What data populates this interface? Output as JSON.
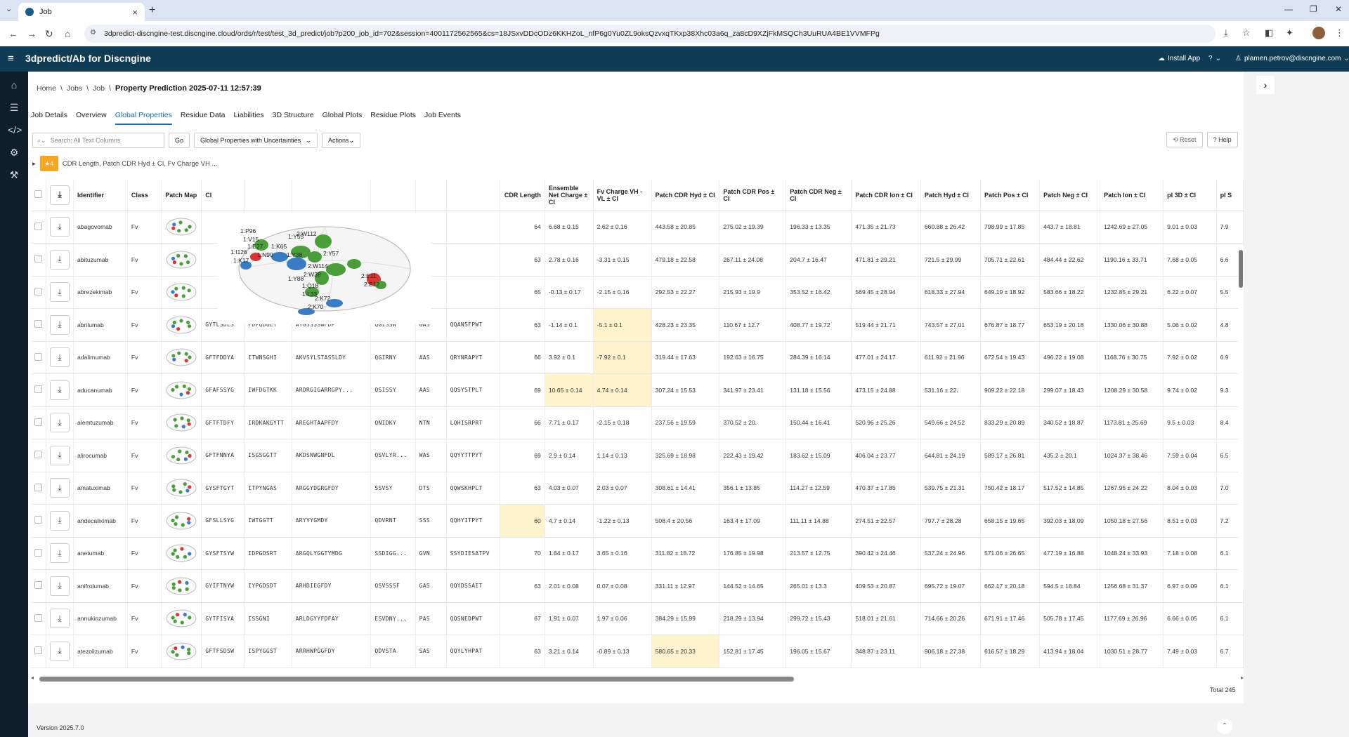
{
  "browser": {
    "tab_title": "Job",
    "url": "3dpredict-discngine-test.discngine.cloud/ords/r/test/test_3d_predict/job?p200_job_id=702&session=4001172562565&cs=18JSxvDDcODz6KKHZoL_nfP6g0Yu0ZL9oksQzvxqTKxp38Xhc03a6q_za8cD9XZjFkMSQCh3UuRUA4BE1VVMFPg"
  },
  "app": {
    "title": "3dpredict/Ab for Discngine",
    "install": "Install App",
    "help": "?",
    "user": "plamen.petrov@discngine.com"
  },
  "breadcrumb": {
    "home": "Home",
    "jobs": "Jobs",
    "job": "Job",
    "current": "Property Prediction 2025-07-11 12:57:39"
  },
  "tabs": [
    "Job Details",
    "Overview",
    "Global Properties",
    "Residue Data",
    "Liabilities",
    "3D Structure",
    "Global Plots",
    "Residue Plots",
    "Job Events"
  ],
  "toolbar": {
    "search_placeholder": "Search: All Text Columns",
    "go": "Go",
    "view_select": "Global Properties with Uncertainties",
    "actions": "Actions",
    "reset": "Reset",
    "help": "Help"
  },
  "filter": {
    "count": "4",
    "text": "CDR Length, Patch CDR Hyd ± CI, Fv Charge VH ..."
  },
  "columns": {
    "identifier": "Identifier",
    "class": "Class",
    "patch_map": "Patch Map",
    "c1": "Cl",
    "cdr_length": "CDR Length",
    "ensemble": "Ensemble Net Charge ± CI",
    "fv_charge": "Fv Charge VH - VL ± CI",
    "pcdr_hyd": "Patch CDR Hyd ± CI",
    "pcdr_pos": "Patch CDR Pos ± CI",
    "pcdr_neg": "Patch CDR Neg ± CI",
    "pcdr_ion": "Patch CDR Ion ± CI",
    "p_hyd": "Patch Hyd ± CI",
    "p_pos": "Patch Pos ± CI",
    "p_neg": "Patch Neg ± CI",
    "p_ion": "Patch Ion ± CI",
    "pi3d": "pI 3D ± CI",
    "pi_s": "pI S"
  },
  "rows": [
    {
      "id": "abagovomab",
      "cls": "Fv",
      "h1": "",
      "h2": "",
      "h3": "",
      "l1": "",
      "l2": "",
      "l3": "",
      "cdr": "64",
      "ens": "6.68 ± 0.15",
      "fv": "2.62 ± 0.16",
      "a": "443.58 ± 20.85",
      "b": "275.02 ± 19.39",
      "c": "196.33 ± 13.35",
      "d": "471.35 ± 21.73",
      "e": "660.88 ± 26.42",
      "f": "798.99 ± 17.85",
      "g": "443.7 ± 18.81",
      "h": "1242.69 ± 27.05",
      "i": "9.01 ± 0.03",
      "j": "7.9"
    },
    {
      "id": "abituzumab",
      "cls": "Fv",
      "h1": "",
      "h2": "",
      "h3": "",
      "l1": "",
      "l2": "",
      "l3": "",
      "cdr": "63",
      "ens": "2.78 ± 0.16",
      "fv": "-3.31 ± 0.15",
      "a": "479.18 ± 22.58",
      "b": "267.11 ± 24.08",
      "c": "204.7 ± 16.47",
      "d": "471.81 ± 29.21",
      "e": "721.5 ± 29.99",
      "f": "705.71 ± 22.61",
      "g": "484.44 ± 22.62",
      "h": "1190.16 ± 33.71",
      "i": "7.68 ± 0.05",
      "j": "6.6"
    },
    {
      "id": "abrezekimab",
      "cls": "Fv",
      "h1": "",
      "h2": "",
      "h3": "",
      "l1": "",
      "l2": "",
      "l3": "",
      "cdr": "65",
      "ens": "-0.13 ± 0.17",
      "fv": "-2.15 ± 0.16",
      "a": "292.53 ± 22.27",
      "b": "215.93 ± 19.9",
      "c": "353.52 ± 16.42",
      "d": "569.45 ± 28.94",
      "e": "618.33 ± 27.94",
      "f": "649.19 ± 18.92",
      "g": "583.66 ± 18.22",
      "h": "1232.85 ± 29.21",
      "i": "6.22 ± 0.07",
      "j": "5.5"
    },
    {
      "id": "abrilumab",
      "cls": "Fv",
      "h1": "GYTLSDLS",
      "h2": "FDPQDGET",
      "h3": "ATGSSSSWFDP",
      "l1": "QGISSW",
      "l2": "GAS",
      "l3": "QQANSFPWT",
      "cdr": "63",
      "ens": "-1.14 ± 0.1",
      "fv": "-5.1 ± 0.1",
      "a": "428.23 ± 23.35",
      "b": "110.67 ± 12.7",
      "c": "408.77 ± 19.72",
      "d": "519.44 ± 21.71",
      "e": "743.57 ± 27.01",
      "f": "676.87 ± 18.77",
      "g": "653.19 ± 20.18",
      "h": "1330.06 ± 30.88",
      "i": "5.06 ± 0.02",
      "j": "4.8"
    },
    {
      "id": "adalimumab",
      "cls": "Fv",
      "h1": "GFTFDDYA",
      "h2": "ITWNSGHI",
      "h3": "AKVSYLSTASSLDY",
      "l1": "QGIRNY",
      "l2": "AAS",
      "l3": "QRYNRAPYT",
      "cdr": "66",
      "ens": "3.92 ± 0.1",
      "fv": "-7.92 ± 0.1",
      "a": "319.44 ± 17.63",
      "b": "192.63 ± 16.75",
      "c": "284.39 ± 16.14",
      "d": "477.01 ± 24.17",
      "e": "611.92 ± 21.96",
      "f": "672.54 ± 19.43",
      "g": "496.22 ± 19.08",
      "h": "1168.76 ± 30.75",
      "i": "7.92 ± 0.02",
      "j": "6.9"
    },
    {
      "id": "aducanumab",
      "cls": "Fv",
      "h1": "GFAFSSYG",
      "h2": "IWFDGTKK",
      "h3": "ARDRGIGARRGPY...",
      "l1": "QSISSY",
      "l2": "AAS",
      "l3": "QQSYSTPLT",
      "cdr": "69",
      "ens": "10.65 ± 0.14",
      "fv": "4.74 ± 0.14",
      "a": "307.24 ± 15.53",
      "b": "341.97 ± 23.41",
      "c": "131.18 ± 15.56",
      "d": "473.15 ± 24.88",
      "e": "531.16 ± 22.",
      "f": "909.22 ± 22.18",
      "g": "299.07 ± 18.43",
      "h": "1208.29 ± 30.58",
      "i": "9.74 ± 0.02",
      "j": "9.3"
    },
    {
      "id": "alemtuzumab",
      "cls": "Fv",
      "h1": "GFTFTDFY",
      "h2": "IRDKAKGYTT",
      "h3": "AREGHTAAPFDY",
      "l1": "QNIDKY",
      "l2": "NTN",
      "l3": "LQHISRPRT",
      "cdr": "66",
      "ens": "7.71 ± 0.17",
      "fv": "-2.15 ± 0.18",
      "a": "237.56 ± 19.59",
      "b": "370.52 ± 20.",
      "c": "150.44 ± 16.41",
      "d": "520.96 ± 25.26",
      "e": "549.66 ± 24.52",
      "f": "833.29 ± 20.89",
      "g": "340.52 ± 18.87",
      "h": "1173.81 ± 25.69",
      "i": "9.5 ± 0.03",
      "j": "8.4"
    },
    {
      "id": "alirocumab",
      "cls": "Fv",
      "h1": "GFTFNNYA",
      "h2": "ISGSGGTT",
      "h3": "AKDSNWGNFDL",
      "l1": "QSVLYR...",
      "l2": "WAS",
      "l3": "QQYYTTPYT",
      "cdr": "69",
      "ens": "2.9 ± 0.14",
      "fv": "1.14 ± 0.13",
      "a": "325.69 ± 18.98",
      "b": "222.43 ± 19.42",
      "c": "183.62 ± 15.09",
      "d": "406.04 ± 23.77",
      "e": "644.81 ± 24.19",
      "f": "589.17 ± 26.81",
      "g": "435.2 ± 20.1",
      "h": "1024.37 ± 38.46",
      "i": "7.59 ± 0.04",
      "j": "6.5"
    },
    {
      "id": "amatuximab",
      "cls": "Fv",
      "h1": "GYSFTGYT",
      "h2": "ITPYNGAS",
      "h3": "ARGGYDGRGFDY",
      "l1": "SSVSY",
      "l2": "DTS",
      "l3": "QQWSKHPLT",
      "cdr": "63",
      "ens": "4.03 ± 0.07",
      "fv": "2.03 ± 0.07",
      "a": "308.61 ± 14.41",
      "b": "356.1 ± 13.85",
      "c": "114.27 ± 12.59",
      "d": "470.37 ± 17.85",
      "e": "539.75 ± 21.31",
      "f": "750.42 ± 18.17",
      "g": "517.52 ± 14.85",
      "h": "1267.95 ± 24.22",
      "i": "8.04 ± 0.03",
      "j": "7.0"
    },
    {
      "id": "andecaliximab",
      "cls": "Fv",
      "h1": "GFSLLSYG",
      "h2": "IWTGGTT",
      "h3": "ARYYYGMDY",
      "l1": "QDVRNT",
      "l2": "SSS",
      "l3": "QQHYITPYT",
      "cdr": "60",
      "ens": "4.7 ± 0.14",
      "fv": "-1.22 ± 0.13",
      "a": "508.4 ± 20.56",
      "b": "163.4 ± 17.09",
      "c": "111.11 ± 14.88",
      "d": "274.51 ± 22.57",
      "e": "797.7 ± 28.28",
      "f": "658.15 ± 19.65",
      "g": "392.03 ± 18.09",
      "h": "1050.18 ± 27.56",
      "i": "8.51 ± 0.03",
      "j": "7.2"
    },
    {
      "id": "anetumab",
      "cls": "Fv",
      "h1": "GYSFTSYW",
      "h2": "IDPGDSRT",
      "h3": "ARGQLYGGTYMDG",
      "l1": "SSDIGG...",
      "l2": "GVN",
      "l3": "SSYDIESATPV",
      "cdr": "70",
      "ens": "1.64 ± 0.17",
      "fv": "3.65 ± 0.16",
      "a": "311.82 ± 18.72",
      "b": "176.85 ± 19.98",
      "c": "213.57 ± 12.75",
      "d": "390.42 ± 24.46",
      "e": "537.24 ± 24.96",
      "f": "571.06 ± 26.65",
      "g": "477.19 ± 16.88",
      "h": "1048.24 ± 33.93",
      "i": "7.18 ± 0.08",
      "j": "6.1"
    },
    {
      "id": "anifrolumab",
      "cls": "Fv",
      "h1": "GYIFTNYW",
      "h2": "IYPGDSDT",
      "h3": "ARHDIEGFDY",
      "l1": "QSVSSSF",
      "l2": "GAS",
      "l3": "QQYDSSAIT",
      "cdr": "63",
      "ens": "2.01 ± 0.08",
      "fv": "0.07 ± 0.08",
      "a": "331.11 ± 12.97",
      "b": "144.52 ± 14.65",
      "c": "265.01 ± 13.3",
      "d": "409.53 ± 20.87",
      "e": "695.72 ± 19.07",
      "f": "662.17 ± 20.18",
      "g": "594.5 ± 18.84",
      "h": "1256.68 ± 31.37",
      "i": "6.97 ± 0.09",
      "j": "6.1"
    },
    {
      "id": "annukinzumab",
      "cls": "Fv",
      "h1": "GYTFISYA",
      "h2": "ISSGNI",
      "h3": "ARLDGYYFDFAY",
      "l1": "ESVDNY...",
      "l2": "PAS",
      "l3": "QQSNEDPWT",
      "cdr": "67",
      "ens": "1.91 ± 0.07",
      "fv": "1.97 ± 0.06",
      "a": "384.29 ± 15.99",
      "b": "218.29 ± 13.94",
      "c": "299.72 ± 15.43",
      "d": "518.01 ± 21.61",
      "e": "714.66 ± 20.26",
      "f": "671.91 ± 17.46",
      "g": "505.78 ± 17.45",
      "h": "1177.69 ± 26.96",
      "i": "6.66 ± 0.05",
      "j": "6.1"
    },
    {
      "id": "atezolizumab",
      "cls": "Fv",
      "h1": "GFTFSDSW",
      "h2": "ISPYGGST",
      "h3": "ARRHWPGGFDY",
      "l1": "QDVSTA",
      "l2": "SAS",
      "l3": "QQYLYHPAT",
      "cdr": "63",
      "ens": "3.21 ± 0.14",
      "fv": "-0.89 ± 0.13",
      "a": "580.65 ± 20.33",
      "b": "152.81 ± 17.45",
      "c": "196.05 ± 15.67",
      "d": "348.87 ± 23.11",
      "e": "906.18 ± 27.38",
      "f": "616.57 ± 18.29",
      "g": "413.94 ± 18.04",
      "h": "1030.51 ± 28.77",
      "i": "7.49 ± 0.03",
      "j": "6.7"
    }
  ],
  "highlights": {
    "cdr": [
      "andecaliximab"
    ],
    "ens": [
      "aducanumab"
    ],
    "fv": [
      "abrilumab",
      "adalimumab",
      "aducanumab"
    ],
    "a": [
      "atezolizumab"
    ]
  },
  "popup_labels": [
    "1:P96",
    "1:V15",
    "1:E27",
    "1:I126",
    "1:K17",
    "1:N90",
    "1:K65",
    "1:Y38",
    "1:Y88",
    "1:Y55",
    "2:W112",
    "2:Y57",
    "2:W114",
    "2:W38",
    "1:Q18",
    "1:L33",
    "2:K72",
    "2:K70",
    "2:E11",
    "2:E12"
  ],
  "footer": {
    "total": "Total 245",
    "version": "Version 2025.7.0"
  }
}
